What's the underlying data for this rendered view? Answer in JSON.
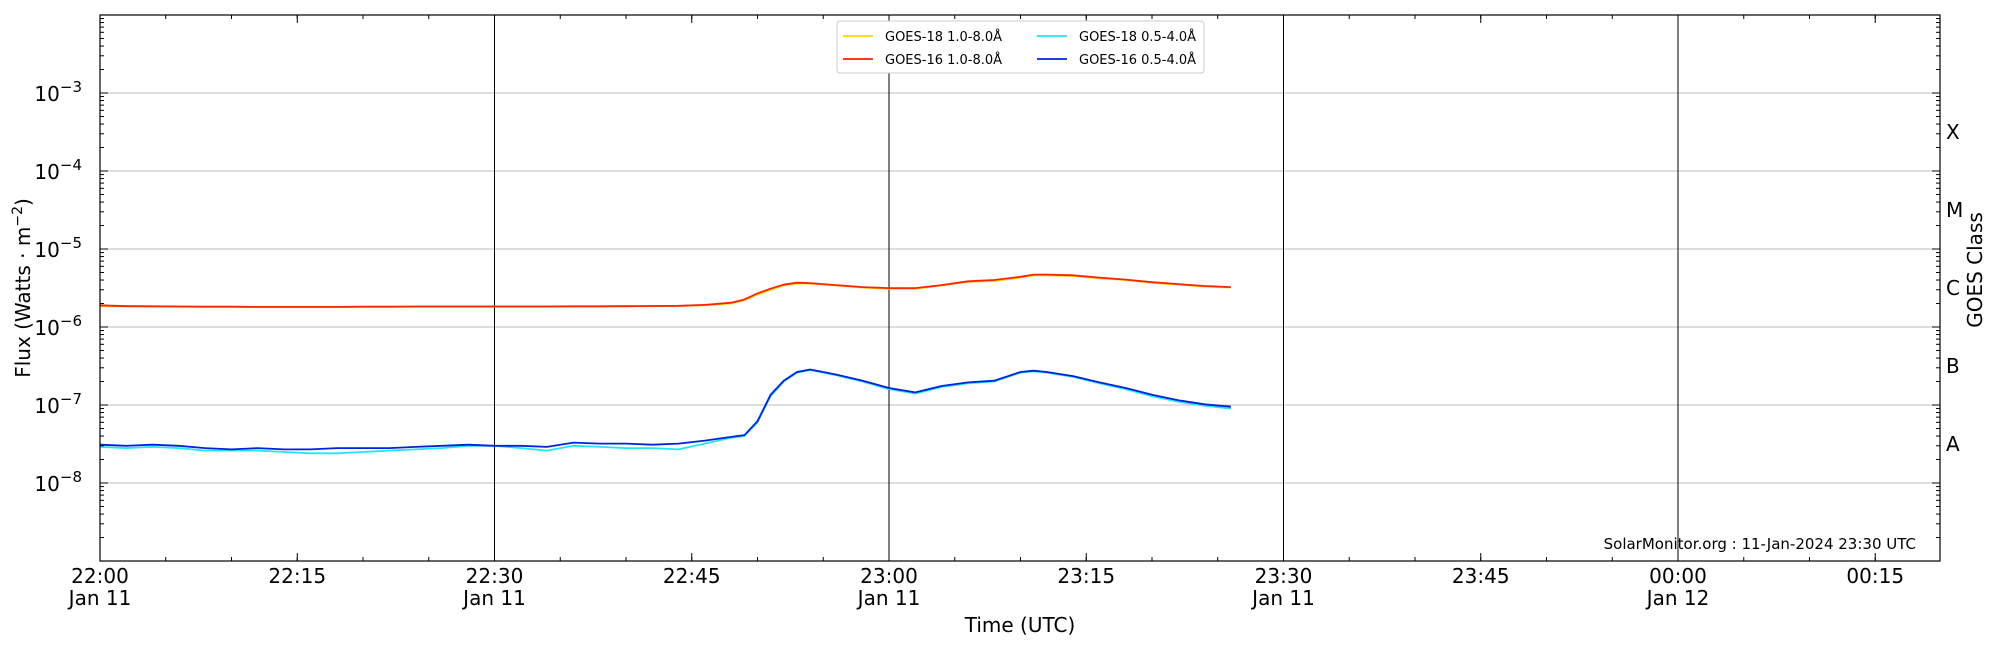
{
  "chart_data": {
    "type": "line",
    "title": "",
    "xlabel": "Time (UTC)",
    "ylabel_main": "Flux (Watts · m",
    "ylabel_sup": "−2",
    "ylabel_close": ")",
    "y2label": "GOES Class",
    "yscale": "log",
    "ylim": [
      1e-09,
      0.01
    ],
    "xlim_minutes_after_2200": [
      0,
      140
    ],
    "grid": "horizontal and at major time ticks",
    "legend_position": "top-center",
    "annotation": "SolarMonitor.org : 11-Jan-2024 23:30 UTC",
    "x_ticks": [
      {
        "m": 0,
        "line1": "22:00",
        "line2": "Jan 11"
      },
      {
        "m": 15,
        "line1": "22:15",
        "line2": ""
      },
      {
        "m": 30,
        "line1": "22:30",
        "line2": "Jan 11"
      },
      {
        "m": 45,
        "line1": "22:45",
        "line2": ""
      },
      {
        "m": 60,
        "line1": "23:00",
        "line2": "Jan 11"
      },
      {
        "m": 75,
        "line1": "23:15",
        "line2": ""
      },
      {
        "m": 90,
        "line1": "23:30",
        "line2": "Jan 11"
      },
      {
        "m": 105,
        "line1": "23:45",
        "line2": ""
      },
      {
        "m": 120,
        "line1": "00:00",
        "line2": "Jan 12"
      },
      {
        "m": 135,
        "line1": "00:15",
        "line2": ""
      }
    ],
    "y_ticks": [
      {
        "exp": -8,
        "label": "−8"
      },
      {
        "exp": -7,
        "label": "−7"
      },
      {
        "exp": -6,
        "label": "−6"
      },
      {
        "exp": -5,
        "label": "−5"
      },
      {
        "exp": -4,
        "label": "−4"
      },
      {
        "exp": -3,
        "label": "−3"
      }
    ],
    "classes": [
      {
        "label": "A",
        "exp": -7.5
      },
      {
        "label": "B",
        "exp": -6.5
      },
      {
        "label": "C",
        "exp": -5.5
      },
      {
        "label": "M",
        "exp": -4.5
      },
      {
        "label": "X",
        "exp": -3.5
      }
    ],
    "x": [
      0,
      2,
      4,
      6,
      8,
      10,
      12,
      14,
      16,
      18,
      20,
      22,
      24,
      26,
      28,
      30,
      32,
      34,
      36,
      38,
      40,
      42,
      44,
      46,
      48,
      49,
      50,
      51,
      52,
      53,
      54,
      55,
      56,
      58,
      60,
      62,
      64,
      66,
      68,
      70,
      71,
      72,
      74,
      76,
      78,
      80,
      82,
      84,
      86
    ],
    "series": [
      {
        "name": "GOES-18 1.0-8.0Å",
        "color": "#ffd700",
        "values": [
          1.85e-06,
          1.84e-06,
          1.83e-06,
          1.82e-06,
          1.81e-06,
          1.81e-06,
          1.8e-06,
          1.8e-06,
          1.8e-06,
          1.8e-06,
          1.81e-06,
          1.81e-06,
          1.82e-06,
          1.82e-06,
          1.82e-06,
          1.82e-06,
          1.82e-06,
          1.82e-06,
          1.83e-06,
          1.83e-06,
          1.84e-06,
          1.85e-06,
          1.86e-06,
          1.9e-06,
          2e-06,
          2.2e-06,
          2.6e-06,
          3e-06,
          3.4e-06,
          3.6e-06,
          3.6e-06,
          3.5e-06,
          3.4e-06,
          3.2e-06,
          3.1e-06,
          3.1e-06,
          3.4e-06,
          3.8e-06,
          3.9e-06,
          4.3e-06,
          4.6e-06,
          4.6e-06,
          4.5e-06,
          4.2e-06,
          4e-06,
          3.7e-06,
          3.5e-06,
          3.3e-06,
          3.2e-06
        ]
      },
      {
        "name": "GOES-16 1.0-8.0Å",
        "color": "#ff2200",
        "values": [
          1.9e-06,
          1.85e-06,
          1.84e-06,
          1.83e-06,
          1.82e-06,
          1.82e-06,
          1.81e-06,
          1.81e-06,
          1.81e-06,
          1.81e-06,
          1.82e-06,
          1.82e-06,
          1.83e-06,
          1.83e-06,
          1.83e-06,
          1.83e-06,
          1.83e-06,
          1.83e-06,
          1.84e-06,
          1.84e-06,
          1.85e-06,
          1.86e-06,
          1.87e-06,
          1.92e-06,
          2.05e-06,
          2.25e-06,
          2.7e-06,
          3.1e-06,
          3.5e-06,
          3.7e-06,
          3.65e-06,
          3.55e-06,
          3.45e-06,
          3.25e-06,
          3.15e-06,
          3.15e-06,
          3.45e-06,
          3.85e-06,
          4e-06,
          4.4e-06,
          4.7e-06,
          4.7e-06,
          4.6e-06,
          4.3e-06,
          4.05e-06,
          3.75e-06,
          3.55e-06,
          3.35e-06,
          3.25e-06
        ]
      },
      {
        "name": "GOES-18 0.5-4.0Å",
        "color": "#22e5f5",
        "values": [
          2.9e-08,
          2.8e-08,
          2.9e-08,
          2.8e-08,
          2.6e-08,
          2.6e-08,
          2.6e-08,
          2.5e-08,
          2.4e-08,
          2.4e-08,
          2.5e-08,
          2.6e-08,
          2.7e-08,
          2.8e-08,
          3e-08,
          3e-08,
          2.8e-08,
          2.6e-08,
          3e-08,
          2.9e-08,
          2.8e-08,
          2.8e-08,
          2.7e-08,
          3.2e-08,
          3.8e-08,
          4e-08,
          6e-08,
          1.3e-07,
          2e-07,
          2.6e-07,
          2.8e-07,
          2.6e-07,
          2.4e-07,
          2e-07,
          1.6e-07,
          1.4e-07,
          1.7e-07,
          1.9e-07,
          2e-07,
          2.6e-07,
          2.7e-07,
          2.6e-07,
          2.3e-07,
          1.9e-07,
          1.6e-07,
          1.3e-07,
          1.1e-07,
          9.8e-08,
          9e-08
        ]
      },
      {
        "name": "GOES-16 0.5-4.0Å",
        "color": "#0022dd",
        "values": [
          3.1e-08,
          3e-08,
          3.1e-08,
          3e-08,
          2.8e-08,
          2.7e-08,
          2.8e-08,
          2.7e-08,
          2.7e-08,
          2.8e-08,
          2.8e-08,
          2.8e-08,
          2.9e-08,
          3e-08,
          3.1e-08,
          3e-08,
          3e-08,
          2.9e-08,
          3.3e-08,
          3.2e-08,
          3.2e-08,
          3.1e-08,
          3.2e-08,
          3.5e-08,
          3.9e-08,
          4.1e-08,
          6.2e-08,
          1.35e-07,
          2.05e-07,
          2.65e-07,
          2.85e-07,
          2.65e-07,
          2.45e-07,
          2.05e-07,
          1.65e-07,
          1.45e-07,
          1.75e-07,
          1.95e-07,
          2.05e-07,
          2.65e-07,
          2.75e-07,
          2.65e-07,
          2.35e-07,
          1.95e-07,
          1.65e-07,
          1.35e-07,
          1.15e-07,
          1.02e-07,
          9.5e-08
        ]
      }
    ]
  }
}
